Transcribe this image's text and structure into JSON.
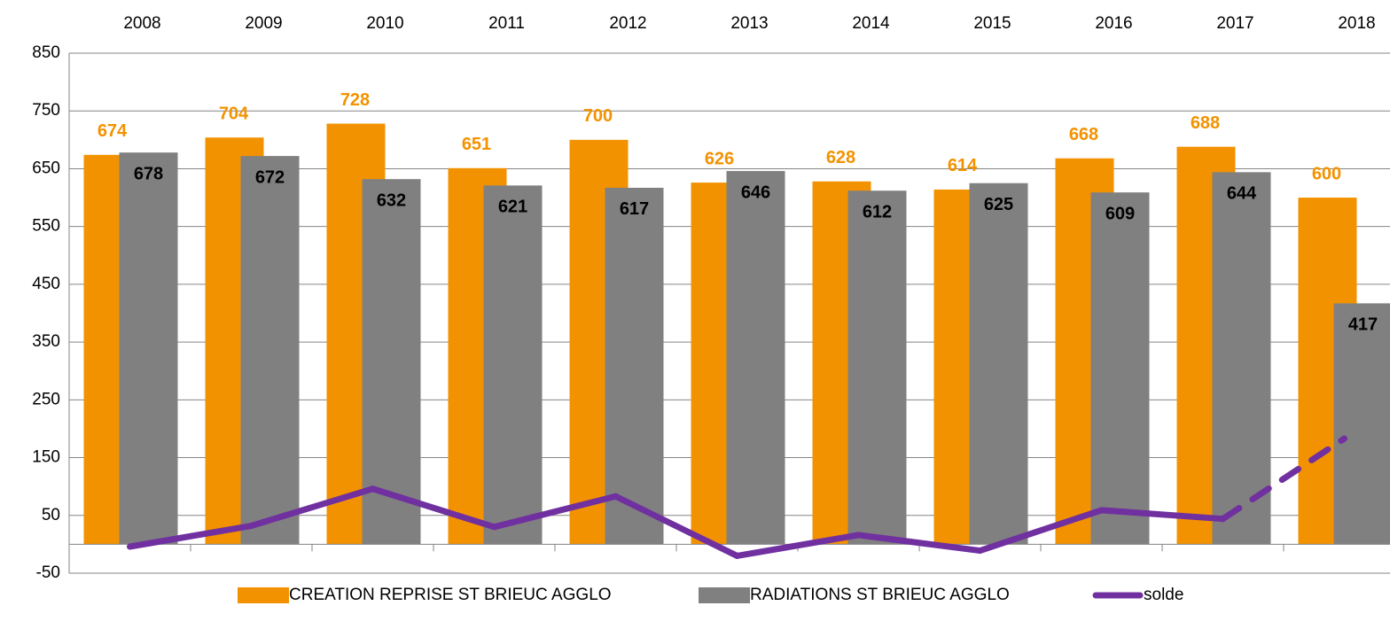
{
  "chart_data": {
    "type": "bar-line",
    "categories": [
      "2008",
      "2009",
      "2010",
      "2011",
      "2012",
      "2013",
      "2014",
      "2015",
      "2016",
      "2017",
      "2018"
    ],
    "series": [
      {
        "name": "CREATION REPRISE ST BRIEUC AGGLO",
        "color": "#f39200",
        "type": "bar",
        "values": [
          674,
          704,
          728,
          651,
          700,
          626,
          628,
          614,
          668,
          688,
          600
        ]
      },
      {
        "name": "RADIATIONS ST BRIEUC AGGLO",
        "color": "#808080",
        "type": "bar",
        "values": [
          678,
          672,
          632,
          621,
          617,
          646,
          612,
          625,
          609,
          644,
          417
        ]
      },
      {
        "name": "solde",
        "color": "#7030a0",
        "type": "line",
        "values": [
          -4,
          32,
          96,
          30,
          83,
          -20,
          16,
          -11,
          59,
          44,
          183
        ],
        "dashed_segments": [
          9
        ]
      }
    ],
    "ylim": [
      -50,
      850
    ],
    "yticks": [
      -50,
      50,
      150,
      250,
      350,
      450,
      550,
      650,
      750,
      850
    ],
    "grid": true,
    "legend": "bottom",
    "category_axis": "top"
  }
}
